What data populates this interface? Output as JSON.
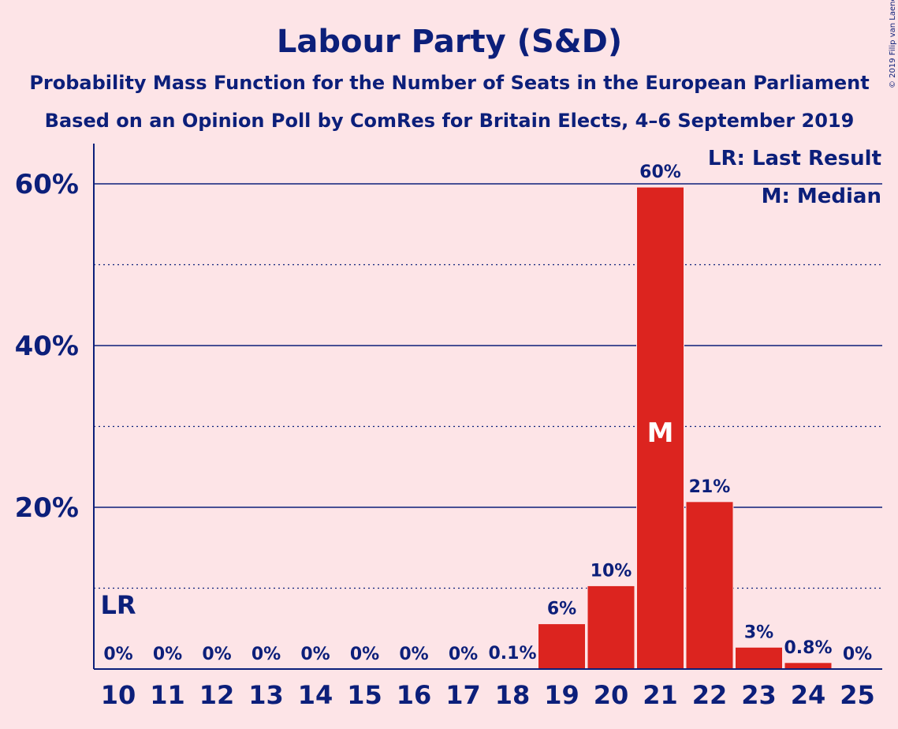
{
  "title": "Labour Party (S&D)",
  "subtitle1": "Probability Mass Function for the Number of Seats in the European Parliament",
  "subtitle2": "Based on an Opinion Poll by ComRes for Britain Elects, 4–6 September 2019",
  "copyright": "© 2019 Filip van Laenen",
  "legend": {
    "lr": "LR: Last Result",
    "median": "M: Median"
  },
  "markers": {
    "lr_label": "LR",
    "lr_seats": 10,
    "median_label": "M",
    "median_seats": 21
  },
  "colors": {
    "bar": "#dc241f",
    "text": "#0c1f7a",
    "background": "#fde4e7"
  },
  "chart_data": {
    "type": "bar",
    "categories": [
      "10",
      "11",
      "12",
      "13",
      "14",
      "15",
      "16",
      "17",
      "18",
      "19",
      "20",
      "21",
      "22",
      "23",
      "24",
      "25"
    ],
    "values": [
      0,
      0,
      0,
      0,
      0,
      0,
      0,
      0,
      0.1,
      5.6,
      10.3,
      59.6,
      20.7,
      2.7,
      0.8,
      0
    ],
    "data_labels": [
      "0%",
      "0%",
      "0%",
      "0%",
      "0%",
      "0%",
      "0%",
      "0%",
      "0.1%",
      "6%",
      "10%",
      "60%",
      "21%",
      "3%",
      "0.8%",
      "0%"
    ],
    "yticks": [
      20,
      40,
      60
    ],
    "ytick_labels": [
      "20%",
      "40%",
      "60%"
    ],
    "ylim": [
      0,
      65
    ],
    "grid": true
  }
}
